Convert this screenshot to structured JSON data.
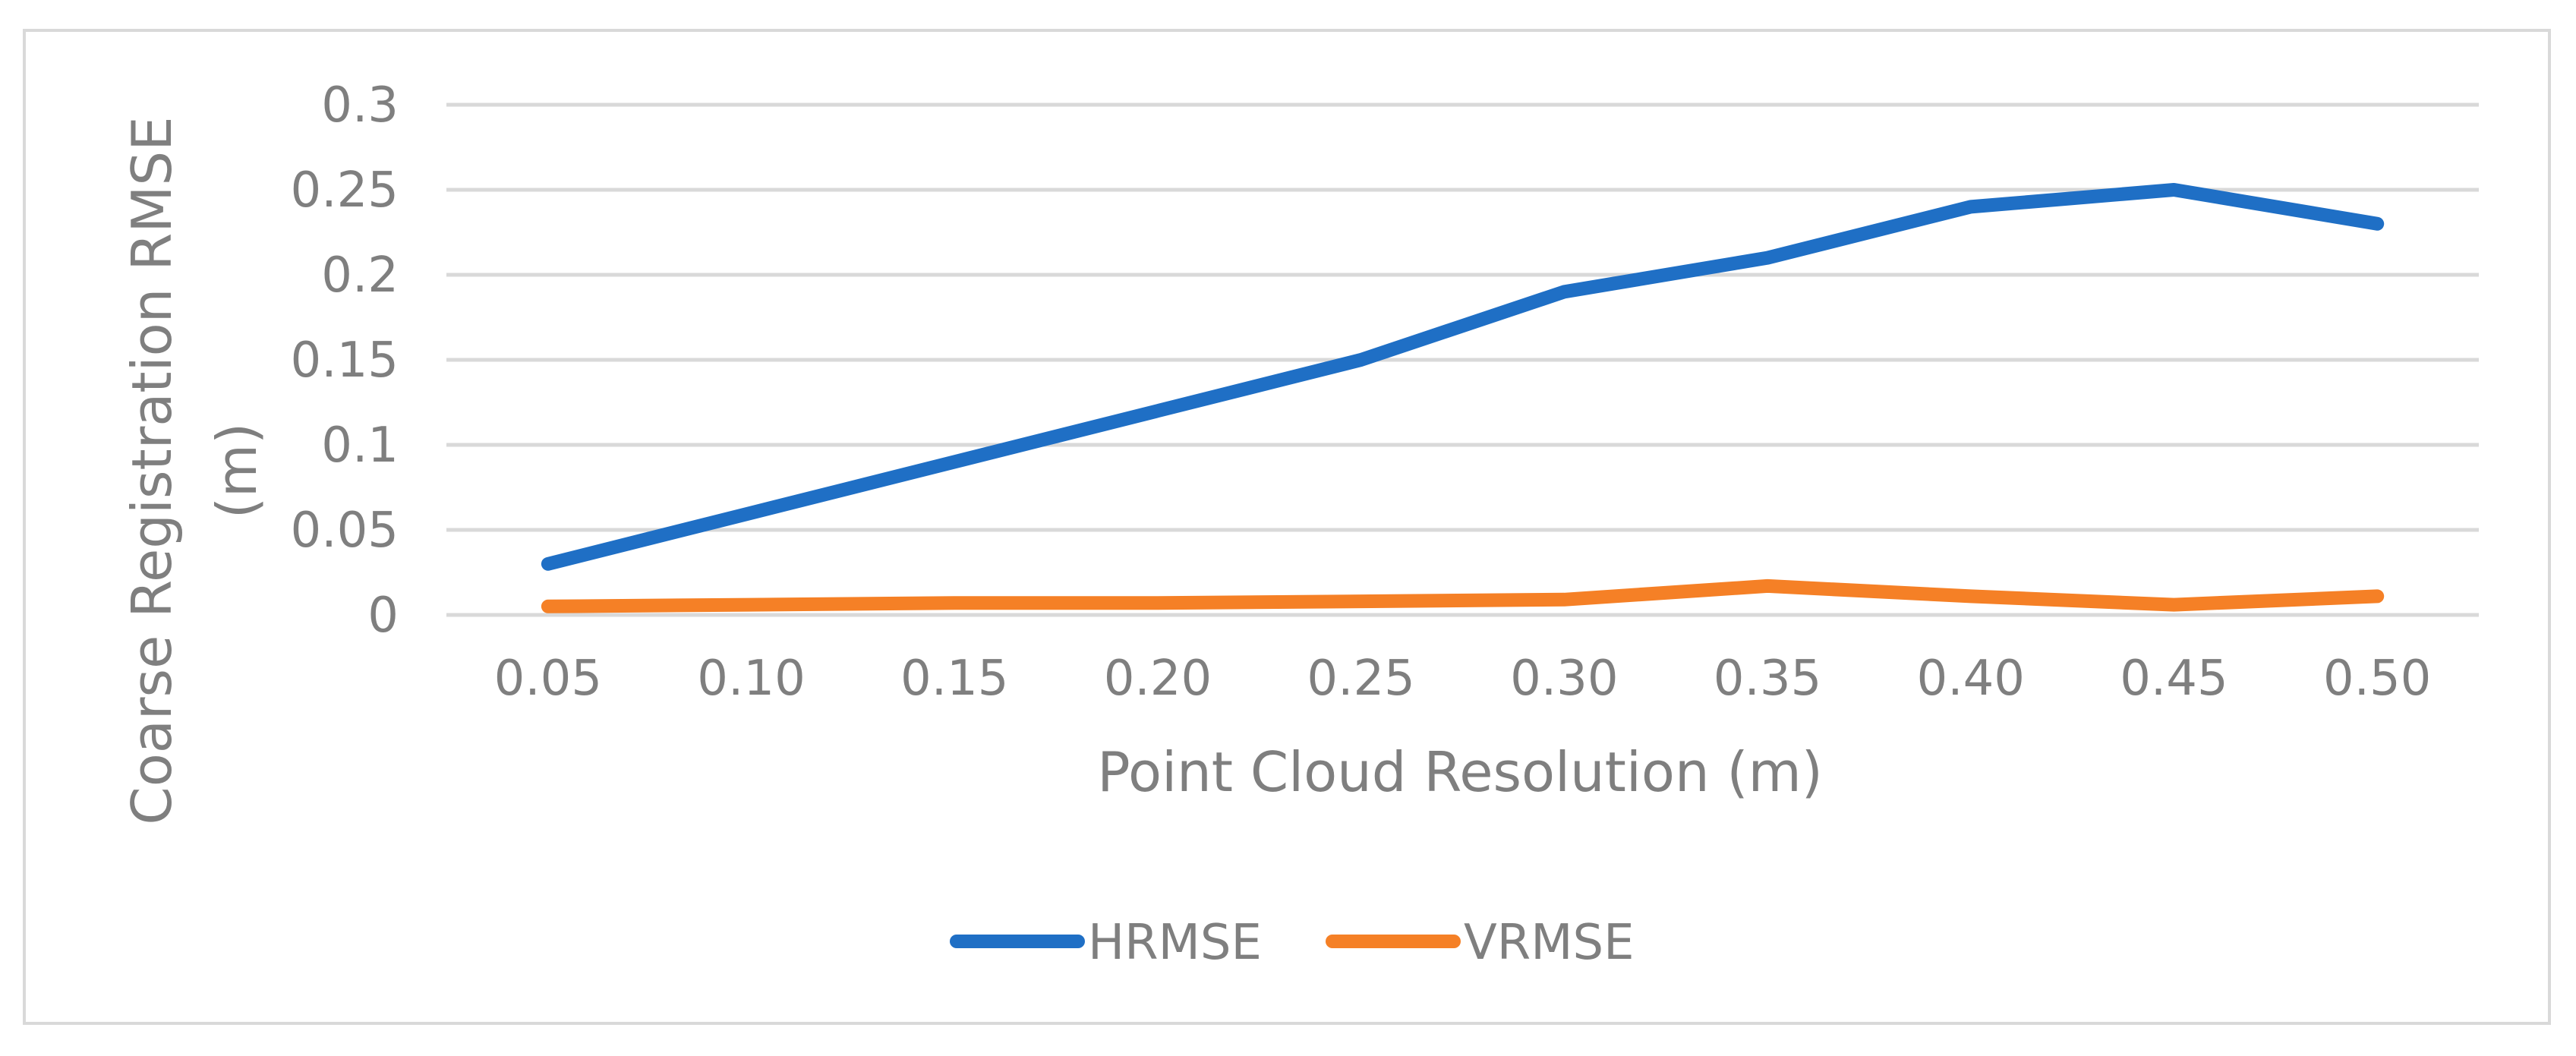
{
  "chart_data": {
    "type": "line",
    "title": "",
    "xlabel": "Point Cloud Resolution (m)",
    "ylabel_lines": [
      "Coarse Registration RMSE",
      "(m)"
    ],
    "categories": [
      "0.05",
      "0.10",
      "0.15",
      "0.20",
      "0.25",
      "0.30",
      "0.35",
      "0.40",
      "0.45",
      "0.50"
    ],
    "y_ticks": [
      "0",
      "0.05",
      "0.1",
      "0.15",
      "0.2",
      "0.25",
      "0.3"
    ],
    "ylim": [
      0,
      0.3
    ],
    "grid": true,
    "legend_position": "bottom",
    "series": [
      {
        "name": "HRMSE",
        "color": "#1f6fc5",
        "values": [
          0.03,
          0.06,
          0.09,
          0.12,
          0.15,
          0.19,
          0.21,
          0.24,
          0.25,
          0.23
        ]
      },
      {
        "name": "VRMSE",
        "color": "#f58026",
        "values": [
          0.005,
          0.006,
          0.007,
          0.007,
          0.008,
          0.009,
          0.017,
          0.011,
          0.006,
          0.011
        ]
      }
    ]
  }
}
